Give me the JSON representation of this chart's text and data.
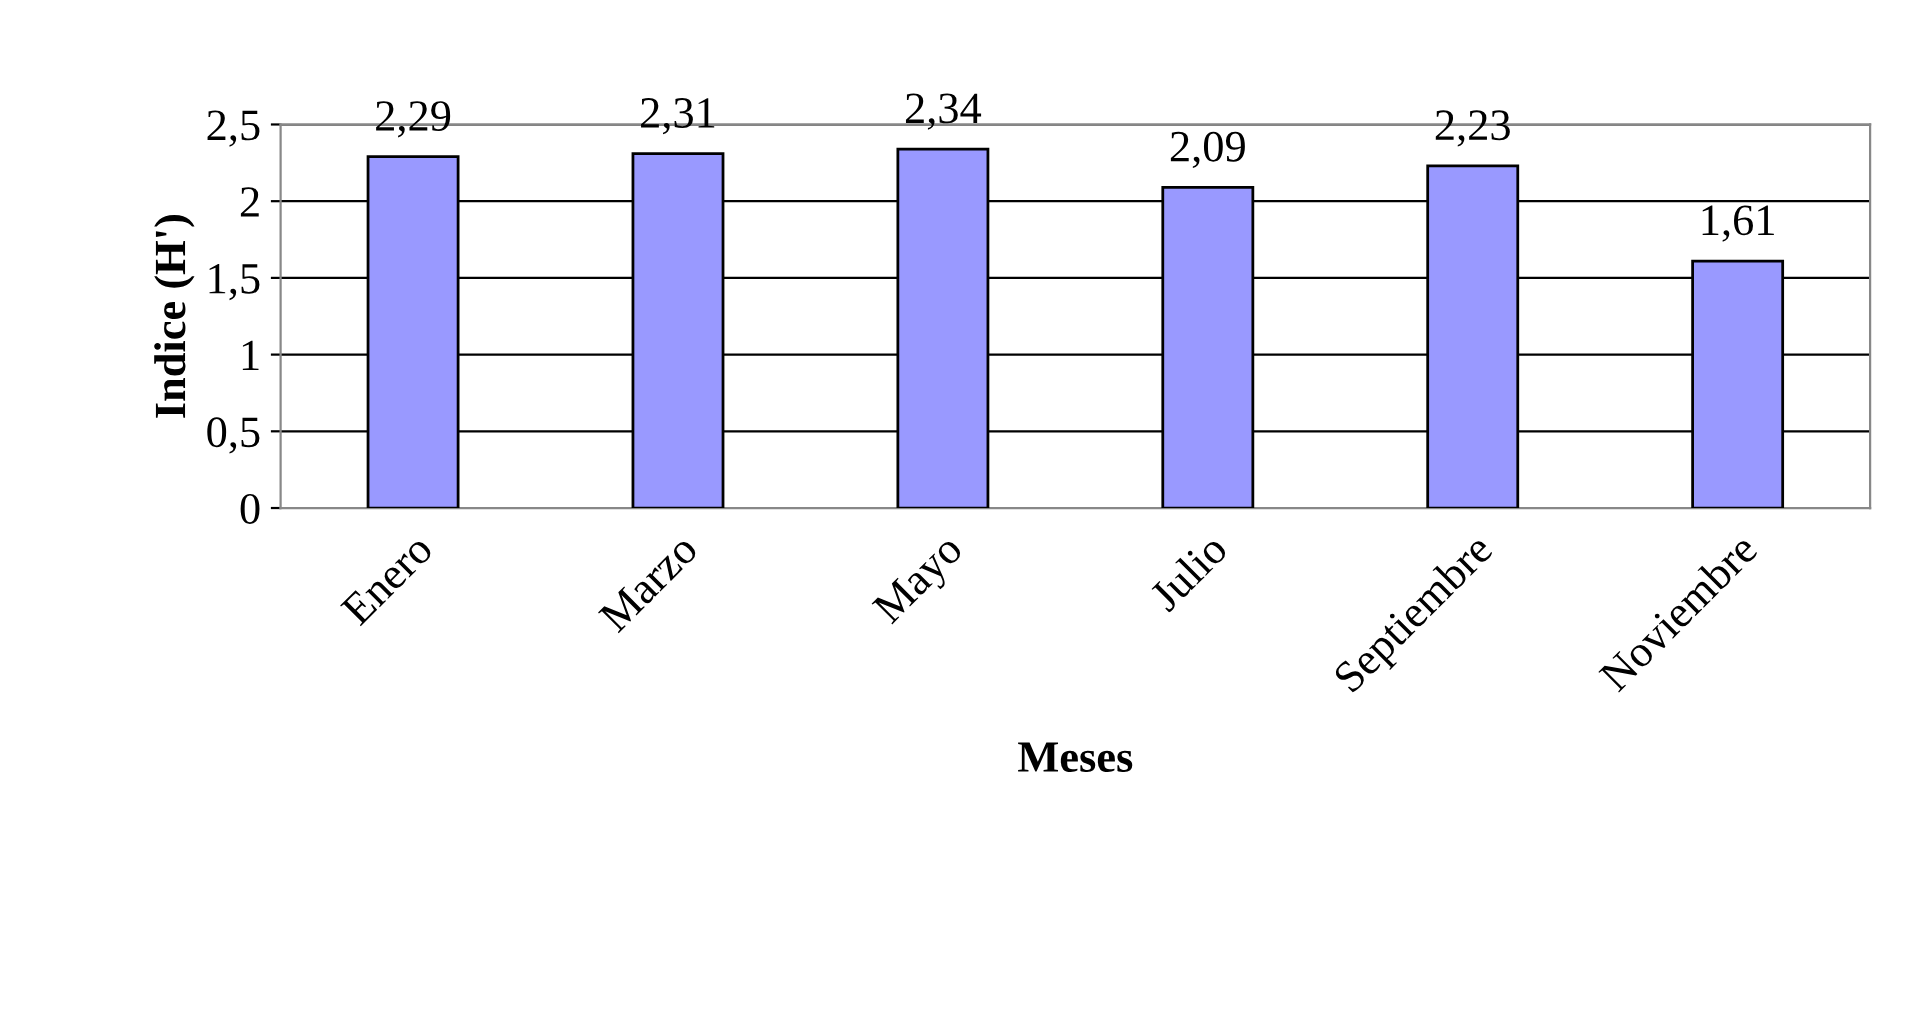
{
  "chart_data": {
    "type": "bar",
    "xlabel": "Meses",
    "ylabel": "Indice (H')",
    "categories": [
      "Enero",
      "Marzo",
      "Mayo",
      "Julio",
      "Septiembre",
      "Noviembre"
    ],
    "values": [
      2.29,
      2.31,
      2.34,
      2.09,
      2.23,
      1.61
    ],
    "value_labels": [
      "2,29",
      "2,31",
      "2,34",
      "2,09",
      "2,23",
      "1,61"
    ],
    "color": "#9999ff",
    "ylim": [
      0,
      2.5
    ],
    "yticks": [
      0,
      {
        "value": 0.5,
        "label": "0,5"
      },
      1,
      {
        "value": 1.5,
        "label": "1,5"
      },
      2,
      {
        "value": 2.5,
        "label": "2,5"
      }
    ],
    "grid": "y"
  }
}
